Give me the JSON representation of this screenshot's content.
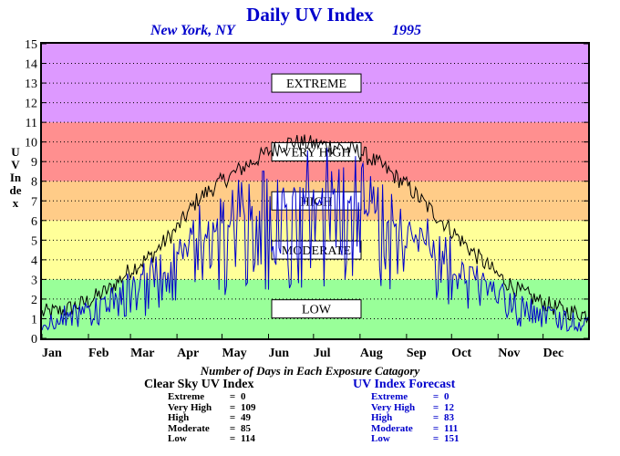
{
  "header": {
    "title": "Daily UV Index",
    "location": "New York, NY",
    "year": "1995"
  },
  "chart_data": {
    "type": "line",
    "title": "Daily UV Index",
    "ylabel": "UV Index",
    "ylim": [
      0,
      15
    ],
    "yticks": [
      "0",
      "1",
      "2",
      "3",
      "4",
      "5",
      "6",
      "7",
      "8",
      "9",
      "10",
      "11",
      "12",
      "13",
      "14",
      "15"
    ],
    "xticks": [
      "Jan",
      "Feb",
      "Mar",
      "Apr",
      "May",
      "Jun",
      "Jul",
      "Aug",
      "Sep",
      "Oct",
      "Nov",
      "Dec"
    ],
    "x_unit": "day of year",
    "xlim": [
      1,
      365
    ],
    "grid": true,
    "bands": [
      {
        "label": "LOW",
        "from": 0,
        "to": 3,
        "color": "#99ff99"
      },
      {
        "label": "MODERATE",
        "from": 3,
        "to": 6,
        "color": "#ffff99"
      },
      {
        "label": "HIGH",
        "from": 6,
        "to": 8,
        "color": "#ffcc88"
      },
      {
        "label": "VERY HIGH",
        "from": 8,
        "to": 11,
        "color": "#ff8f8f"
      },
      {
        "label": "EXTREME",
        "from": 11,
        "to": 15,
        "color": "#dd99ff"
      }
    ],
    "series": [
      {
        "name": "Clear Sky UV Index",
        "color": "#000000",
        "points": [
          [
            1,
            1.3
          ],
          [
            15,
            1.4
          ],
          [
            32,
            1.9
          ],
          [
            46,
            2.5
          ],
          [
            60,
            3.5
          ],
          [
            74,
            4.2
          ],
          [
            91,
            5.6
          ],
          [
            105,
            7.1
          ],
          [
            121,
            8.0
          ],
          [
            135,
            8.7
          ],
          [
            152,
            9.5
          ],
          [
            166,
            10.0
          ],
          [
            182,
            9.9
          ],
          [
            196,
            9.8
          ],
          [
            213,
            9.5
          ],
          [
            227,
            8.8
          ],
          [
            244,
            7.8
          ],
          [
            258,
            6.7
          ],
          [
            274,
            5.5
          ],
          [
            288,
            4.4
          ],
          [
            305,
            3.2
          ],
          [
            319,
            2.4
          ],
          [
            335,
            1.8
          ],
          [
            349,
            1.4
          ],
          [
            365,
            1.2
          ]
        ]
      },
      {
        "name": "UV Index Forecast",
        "color": "#0000cc",
        "points": [
          [
            1,
            1.0
          ],
          [
            15,
            1.1
          ],
          [
            32,
            1.4
          ],
          [
            46,
            1.9
          ],
          [
            60,
            2.6
          ],
          [
            74,
            3.1
          ],
          [
            91,
            3.8
          ],
          [
            105,
            5.2
          ],
          [
            121,
            5.8
          ],
          [
            135,
            6.2
          ],
          [
            152,
            7.0
          ],
          [
            166,
            7.3
          ],
          [
            182,
            7.1
          ],
          [
            196,
            7.4
          ],
          [
            213,
            7.0
          ],
          [
            227,
            6.3
          ],
          [
            244,
            5.2
          ],
          [
            258,
            4.7
          ],
          [
            274,
            3.9
          ],
          [
            288,
            3.0
          ],
          [
            305,
            2.2
          ],
          [
            319,
            1.7
          ],
          [
            335,
            1.3
          ],
          [
            349,
            1.0
          ],
          [
            365,
            1.0
          ]
        ]
      }
    ]
  },
  "counts": {
    "title": "Number of Days in Each Exposure Catagory",
    "clear_sky": {
      "title": "Clear Sky UV Index",
      "rows": [
        {
          "label": "Extreme",
          "value": "0"
        },
        {
          "label": "Very High",
          "value": "109"
        },
        {
          "label": "High",
          "value": "49"
        },
        {
          "label": "Moderate",
          "value": "85"
        },
        {
          "label": "Low",
          "value": "114"
        }
      ]
    },
    "forecast": {
      "title": "UV Index Forecast",
      "rows": [
        {
          "label": "Extreme",
          "value": "0"
        },
        {
          "label": "Very High",
          "value": "12"
        },
        {
          "label": "High",
          "value": "83"
        },
        {
          "label": "Moderate",
          "value": "111"
        },
        {
          "label": "Low",
          "value": "151"
        }
      ]
    }
  }
}
